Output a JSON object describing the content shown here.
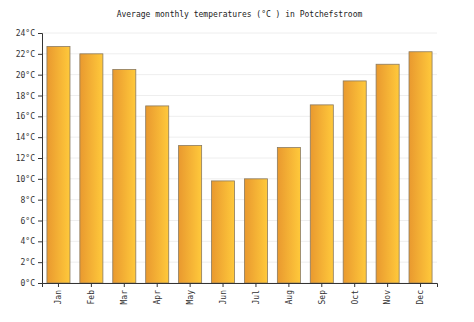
{
  "chart_data": {
    "type": "bar",
    "title": "Average monthly temperatures (°C ) in Potchefstroom",
    "categories": [
      "Jan",
      "Feb",
      "Mar",
      "Apr",
      "May",
      "Jun",
      "Jul",
      "Aug",
      "Sep",
      "Oct",
      "Nov",
      "Dec"
    ],
    "values": [
      22.7,
      22.0,
      20.5,
      17.0,
      13.2,
      9.8,
      10.0,
      13.0,
      17.1,
      19.4,
      21.0,
      22.2
    ],
    "color": "#ffa733",
    "ylim": [
      0,
      24
    ],
    "yticks": [
      {
        "value": 0,
        "label": "0°C"
      },
      {
        "value": 2,
        "label": "2°C"
      },
      {
        "value": 4,
        "label": "4°C"
      },
      {
        "value": 6,
        "label": "6°C"
      },
      {
        "value": 8,
        "label": "8°C"
      },
      {
        "value": 10,
        "label": "10°C"
      },
      {
        "value": 12,
        "label": "12°C"
      },
      {
        "value": 14,
        "label": "14°C"
      },
      {
        "value": 16,
        "label": "16°C"
      },
      {
        "value": 18,
        "label": "18°C"
      },
      {
        "value": 20,
        "label": "20°C"
      },
      {
        "value": 22,
        "label": "22°C"
      },
      {
        "value": 24,
        "label": "24°C"
      }
    ],
    "grid": true
  }
}
